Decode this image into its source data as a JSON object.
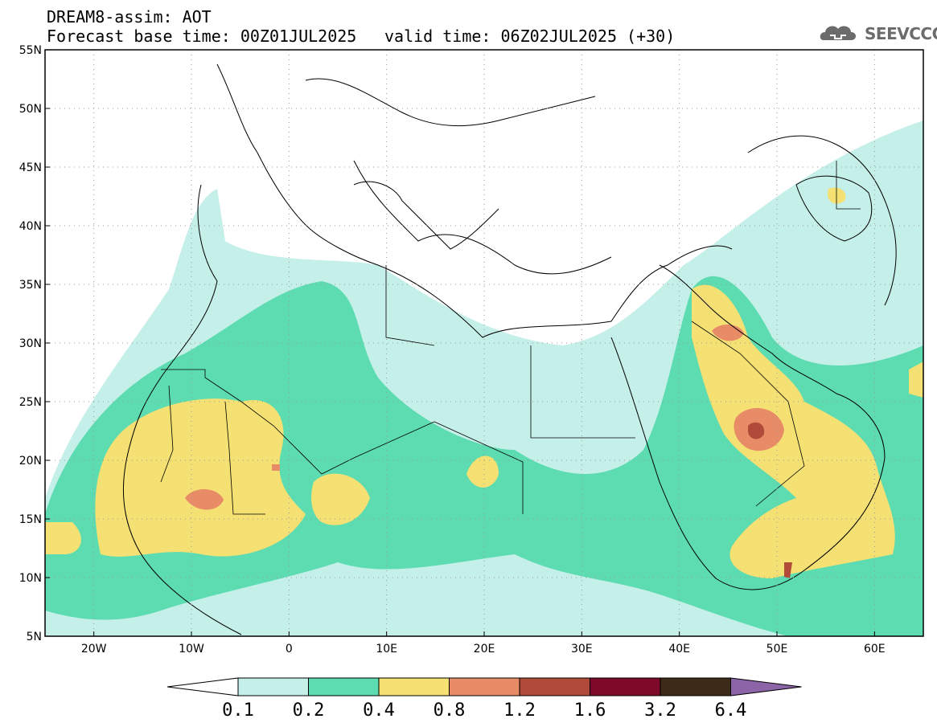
{
  "header": {
    "line1": "DREAM8-assim: AOT",
    "line2_base": "Forecast base time: 00Z01JUL2025",
    "line2_valid": "valid time: 06Z02JUL2025 (+30)"
  },
  "logo": {
    "text": "SEEVCCC",
    "icon": "cloud-icon"
  },
  "map": {
    "lon_ticks": [
      "20W",
      "10W",
      "0",
      "10E",
      "20E",
      "30E",
      "40E",
      "50E",
      "60E"
    ],
    "lat_ticks": [
      "55N",
      "50N",
      "45N",
      "40N",
      "35N",
      "30N",
      "25N",
      "20N",
      "15N",
      "10N",
      "5N"
    ],
    "lon_range": [
      -25,
      65
    ],
    "lat_range": [
      5,
      55
    ],
    "grid": "dotted"
  },
  "colorbar": {
    "levels": [
      "0.1",
      "0.2",
      "0.4",
      "0.8",
      "1.2",
      "1.6",
      "3.2",
      "6.4"
    ],
    "colors": [
      "#ffffff",
      "#c5efe9",
      "#5cdcb0",
      "#f4e073",
      "#e88c68",
      "#b14a38",
      "#7c0a28",
      "#3e2a18",
      "#8e64a8"
    ]
  }
}
